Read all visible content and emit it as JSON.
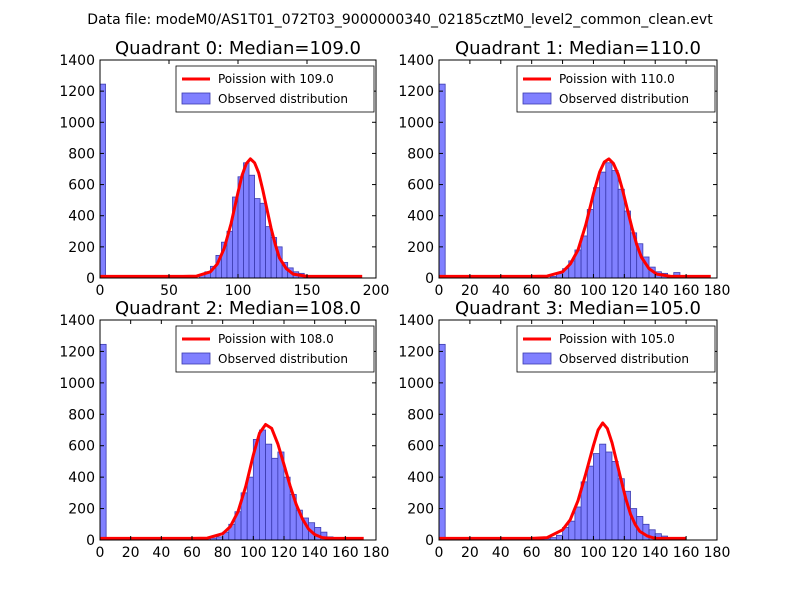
{
  "figure": {
    "suptitle": "Data file: modeM0/AS1T01_072T03_9000000340_02185cztM0_level2_common_clean.evt"
  },
  "colors": {
    "bar_fill": "#8080ff",
    "bar_edge": "#3b3bb0",
    "poisson_line": "#ff0000"
  },
  "chart_data": [
    {
      "type": "bar",
      "title": "Quadrant 0: Median=109.0",
      "xlim": [
        0,
        200
      ],
      "ylim": [
        0,
        1400
      ],
      "xticks": [
        0,
        50,
        100,
        150,
        200
      ],
      "yticks": [
        0,
        200,
        400,
        600,
        800,
        1000,
        1200,
        1400
      ],
      "legend_position": "top-right",
      "bin_width": 4,
      "series": [
        {
          "name": "Observed distribution",
          "kind": "histogram",
          "bins": [
            [
              0,
              1245
            ],
            [
              72,
              20
            ],
            [
              76,
              40
            ],
            [
              80,
              75
            ],
            [
              84,
              145
            ],
            [
              88,
              230
            ],
            [
              92,
              300
            ],
            [
              96,
              520
            ],
            [
              100,
              650
            ],
            [
              104,
              740
            ],
            [
              108,
              660
            ],
            [
              112,
              510
            ],
            [
              116,
              480
            ],
            [
              120,
              330
            ],
            [
              124,
              260
            ],
            [
              128,
              200
            ],
            [
              132,
              100
            ],
            [
              136,
              65
            ],
            [
              140,
              40
            ],
            [
              144,
              30
            ],
            [
              148,
              15
            ],
            [
              152,
              8
            ],
            [
              156,
              4
            ]
          ]
        },
        {
          "name": "Poission with 109.0",
          "kind": "line",
          "x": [
            0,
            60,
            70,
            80,
            85,
            90,
            95,
            100,
            103,
            106,
            109,
            112,
            115,
            118,
            121,
            124,
            127,
            130,
            135,
            140,
            150,
            160,
            190
          ],
          "y": [
            10,
            10,
            12,
            40,
            90,
            190,
            350,
            550,
            660,
            735,
            765,
            740,
            675,
            565,
            440,
            320,
            215,
            130,
            60,
            25,
            10,
            10,
            10
          ]
        }
      ]
    },
    {
      "type": "bar",
      "title": "Quadrant 1: Median=110.0",
      "xlim": [
        0,
        180
      ],
      "ylim": [
        0,
        1400
      ],
      "xticks": [
        0,
        20,
        40,
        60,
        80,
        100,
        120,
        140,
        160,
        180
      ],
      "yticks": [
        0,
        200,
        400,
        600,
        800,
        1000,
        1200,
        1400
      ],
      "legend_position": "top-right",
      "bin_width": 4,
      "series": [
        {
          "name": "Observed distribution",
          "kind": "histogram",
          "bins": [
            [
              0,
              1245
            ],
            [
              72,
              10
            ],
            [
              76,
              30
            ],
            [
              80,
              60
            ],
            [
              84,
              110
            ],
            [
              88,
              180
            ],
            [
              92,
              270
            ],
            [
              96,
              440
            ],
            [
              100,
              580
            ],
            [
              104,
              680
            ],
            [
              108,
              740
            ],
            [
              112,
              690
            ],
            [
              116,
              570
            ],
            [
              120,
              430
            ],
            [
              124,
              290
            ],
            [
              128,
              220
            ],
            [
              132,
              135
            ],
            [
              136,
              70
            ],
            [
              140,
              40
            ],
            [
              144,
              30
            ],
            [
              148,
              15
            ],
            [
              152,
              35
            ],
            [
              156,
              10
            ],
            [
              160,
              5
            ]
          ]
        },
        {
          "name": "Poission with 110.0",
          "kind": "line",
          "x": [
            0,
            60,
            70,
            80,
            85,
            90,
            95,
            100,
            104,
            107,
            110,
            113,
            116,
            119,
            122,
            125,
            128,
            131,
            136,
            141,
            150,
            160,
            176
          ],
          "y": [
            10,
            10,
            12,
            40,
            90,
            180,
            340,
            540,
            680,
            745,
            765,
            735,
            665,
            560,
            440,
            320,
            215,
            135,
            60,
            25,
            10,
            10,
            10
          ]
        }
      ]
    },
    {
      "type": "bar",
      "title": "Quadrant 2: Median=108.0",
      "xlim": [
        0,
        180
      ],
      "ylim": [
        0,
        1400
      ],
      "xticks": [
        0,
        20,
        40,
        60,
        80,
        100,
        120,
        140,
        160,
        180
      ],
      "yticks": [
        0,
        200,
        400,
        600,
        800,
        1000,
        1200,
        1400
      ],
      "legend_position": "top-right",
      "bin_width": 4,
      "series": [
        {
          "name": "Observed distribution",
          "kind": "histogram",
          "bins": [
            [
              0,
              1245
            ],
            [
              64,
              5
            ],
            [
              68,
              8
            ],
            [
              72,
              12
            ],
            [
              76,
              20
            ],
            [
              80,
              50
            ],
            [
              84,
              100
            ],
            [
              88,
              180
            ],
            [
              92,
              300
            ],
            [
              96,
              400
            ],
            [
              100,
              640
            ],
            [
              104,
              700
            ],
            [
              108,
              610
            ],
            [
              112,
              520
            ],
            [
              116,
              560
            ],
            [
              120,
              400
            ],
            [
              124,
              290
            ],
            [
              128,
              190
            ],
            [
              132,
              140
            ],
            [
              136,
              110
            ],
            [
              140,
              80
            ],
            [
              144,
              50
            ],
            [
              148,
              20
            ],
            [
              152,
              10
            ]
          ]
        },
        {
          "name": "Poission with 108.0",
          "kind": "line",
          "x": [
            0,
            60,
            70,
            80,
            85,
            90,
            95,
            100,
            104,
            108,
            112,
            116,
            120,
            124,
            128,
            132,
            136,
            140,
            145,
            150,
            160,
            172
          ],
          "y": [
            10,
            10,
            12,
            40,
            85,
            180,
            340,
            540,
            680,
            735,
            710,
            610,
            480,
            345,
            225,
            135,
            70,
            35,
            15,
            10,
            10,
            10
          ]
        }
      ]
    },
    {
      "type": "bar",
      "title": "Quadrant 3: Median=105.0",
      "xlim": [
        0,
        180
      ],
      "ylim": [
        0,
        1400
      ],
      "xticks": [
        0,
        20,
        40,
        60,
        80,
        100,
        120,
        140,
        160,
        180
      ],
      "yticks": [
        0,
        200,
        400,
        600,
        800,
        1000,
        1200,
        1400
      ],
      "legend_position": "top-right",
      "bin_width": 4,
      "series": [
        {
          "name": "Observed distribution",
          "kind": "histogram",
          "bins": [
            [
              0,
              1245
            ],
            [
              64,
              5
            ],
            [
              68,
              8
            ],
            [
              72,
              15
            ],
            [
              76,
              30
            ],
            [
              80,
              80
            ],
            [
              84,
              120
            ],
            [
              88,
              210
            ],
            [
              92,
              370
            ],
            [
              96,
              470
            ],
            [
              100,
              550
            ],
            [
              104,
              610
            ],
            [
              108,
              560
            ],
            [
              112,
              500
            ],
            [
              116,
              390
            ],
            [
              120,
              310
            ],
            [
              124,
              200
            ],
            [
              128,
              150
            ],
            [
              132,
              100
            ],
            [
              136,
              65
            ],
            [
              140,
              40
            ],
            [
              144,
              25
            ],
            [
              148,
              15
            ],
            [
              152,
              5
            ]
          ]
        },
        {
          "name": "Poission with 105.0",
          "kind": "line",
          "x": [
            0,
            60,
            70,
            80,
            85,
            90,
            95,
            100,
            103,
            106,
            109,
            112,
            115,
            118,
            121,
            124,
            127,
            130,
            135,
            140,
            150,
            160
          ],
          "y": [
            10,
            10,
            15,
            65,
            130,
            250,
            420,
            600,
            700,
            745,
            710,
            620,
            500,
            380,
            260,
            165,
            100,
            55,
            25,
            10,
            10,
            10
          ]
        }
      ]
    }
  ]
}
